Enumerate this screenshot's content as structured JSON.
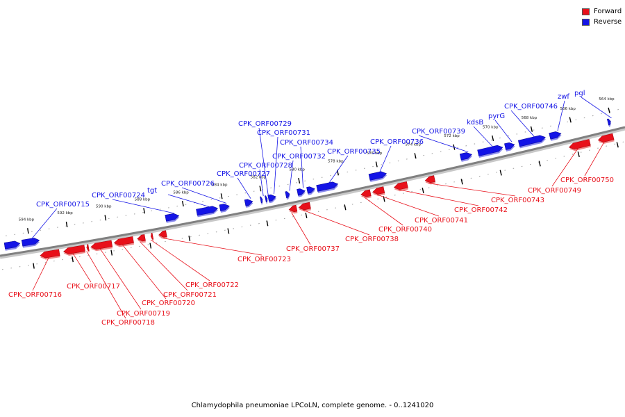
{
  "colors": {
    "forward": "#e8101a",
    "reverse": "#1414e6",
    "axis": "#808080"
  },
  "legend": [
    {
      "label": "Forward",
      "color": "#e8101a"
    },
    {
      "label": "Reverse",
      "color": "#1414e6"
    }
  ],
  "caption": "Chlamydophila pneumoniae LPCoLN, complete genome. - 0..1241020",
  "ticks": [
    {
      "label": "594 kbp",
      "pos": 594
    },
    {
      "label": "592 kbp",
      "pos": 592
    },
    {
      "label": "590 kbp",
      "pos": 590
    },
    {
      "label": "588 kbp",
      "pos": 588
    },
    {
      "label": "586 kbp",
      "pos": 586
    },
    {
      "label": "584 kbp",
      "pos": 584
    },
    {
      "label": "582 kbp",
      "pos": 582
    },
    {
      "label": "580 kbp",
      "pos": 580
    },
    {
      "label": "578 kbp",
      "pos": 578
    },
    {
      "label": "576 kbp",
      "pos": 576
    },
    {
      "label": "574 kbp",
      "pos": 574
    },
    {
      "label": "572 kbp",
      "pos": 572
    },
    {
      "label": "570 kbp",
      "pos": 570
    },
    {
      "label": "568 kbp",
      "pos": 568
    },
    {
      "label": "566 kbp",
      "pos": 566
    },
    {
      "label": "564 kbp",
      "pos": 564
    }
  ],
  "reverse_genes": [
    {
      "label": "",
      "start": 595.3,
      "end": 594.5
    },
    {
      "label": "CPK_ORF00715",
      "start": 594.4,
      "end": 593.5
    },
    {
      "label": "CPK_ORF00724",
      "start": 587.0,
      "end": 586.3
    },
    {
      "label": "tgt",
      "start": 585.4,
      "end": 584.3
    },
    {
      "label": "CPK_ORF00726",
      "start": 584.2,
      "end": 583.7
    },
    {
      "label": "CPK_ORF00727",
      "start": 582.9,
      "end": 582.5
    },
    {
      "label": "CPK_ORF00728",
      "start": 582.1,
      "end": 582.0
    },
    {
      "label": "CPK_ORF00729",
      "start": 581.85,
      "end": 581.75
    },
    {
      "label": "CPK_ORF00731",
      "start": 581.7,
      "end": 581.3
    },
    {
      "label": "CPK_ORF00732",
      "start": 580.8,
      "end": 580.6
    },
    {
      "label": "CPK_ORF00734",
      "start": 580.2,
      "end": 579.8
    },
    {
      "label": "",
      "start": 579.7,
      "end": 579.3
    },
    {
      "label": "CPK_ORF00735",
      "start": 579.2,
      "end": 578.1
    },
    {
      "label": "CPK_ORF00736",
      "start": 576.5,
      "end": 575.6
    },
    {
      "label": "CPK_ORF00739",
      "start": 571.8,
      "end": 571.2
    },
    {
      "label": "kdsB",
      "start": 570.9,
      "end": 569.6
    },
    {
      "label": "pyrG",
      "start": 569.5,
      "end": 569.0
    },
    {
      "label": "CPK_ORF00746",
      "start": 568.8,
      "end": 567.4
    },
    {
      "label": "zwf",
      "start": 567.2,
      "end": 566.6
    },
    {
      "label": "pgl",
      "start": 564.2,
      "end": 564.05
    }
  ],
  "forward_genes": [
    {
      "label": "CPK_ORF00716",
      "start": 593.6,
      "end": 592.6
    },
    {
      "label": "CPK_ORF00717",
      "start": 592.4,
      "end": 591.3
    },
    {
      "label": "CPK_ORF00718",
      "start": 591.2,
      "end": 591.1
    },
    {
      "label": "CPK_ORF00719",
      "start": 591.0,
      "end": 589.9
    },
    {
      "label": "CPK_ORF00720",
      "start": 589.8,
      "end": 588.8
    },
    {
      "label": "CPK_ORF00721",
      "start": 588.6,
      "end": 588.2
    },
    {
      "label": "CPK_ORF00722",
      "start": 587.9,
      "end": 587.8
    },
    {
      "label": "CPK_ORF00723",
      "start": 587.5,
      "end": 587.1
    },
    {
      "label": "CPK_ORF00737",
      "start": 580.8,
      "end": 580.4
    },
    {
      "label": "CPK_ORF00738",
      "start": 580.3,
      "end": 579.7
    },
    {
      "label": "CPK_ORF00740",
      "start": 577.1,
      "end": 576.6
    },
    {
      "label": "CPK_ORF00741",
      "start": 576.5,
      "end": 575.9
    },
    {
      "label": "CPK_ORF00742",
      "start": 575.4,
      "end": 574.7
    },
    {
      "label": "CPK_ORF00743",
      "start": 573.8,
      "end": 573.3
    },
    {
      "label": "CPK_ORF00749",
      "start": 566.4,
      "end": 565.3
    },
    {
      "label": "CPK_ORF00750",
      "start": 564.9,
      "end": 564.1
    }
  ]
}
